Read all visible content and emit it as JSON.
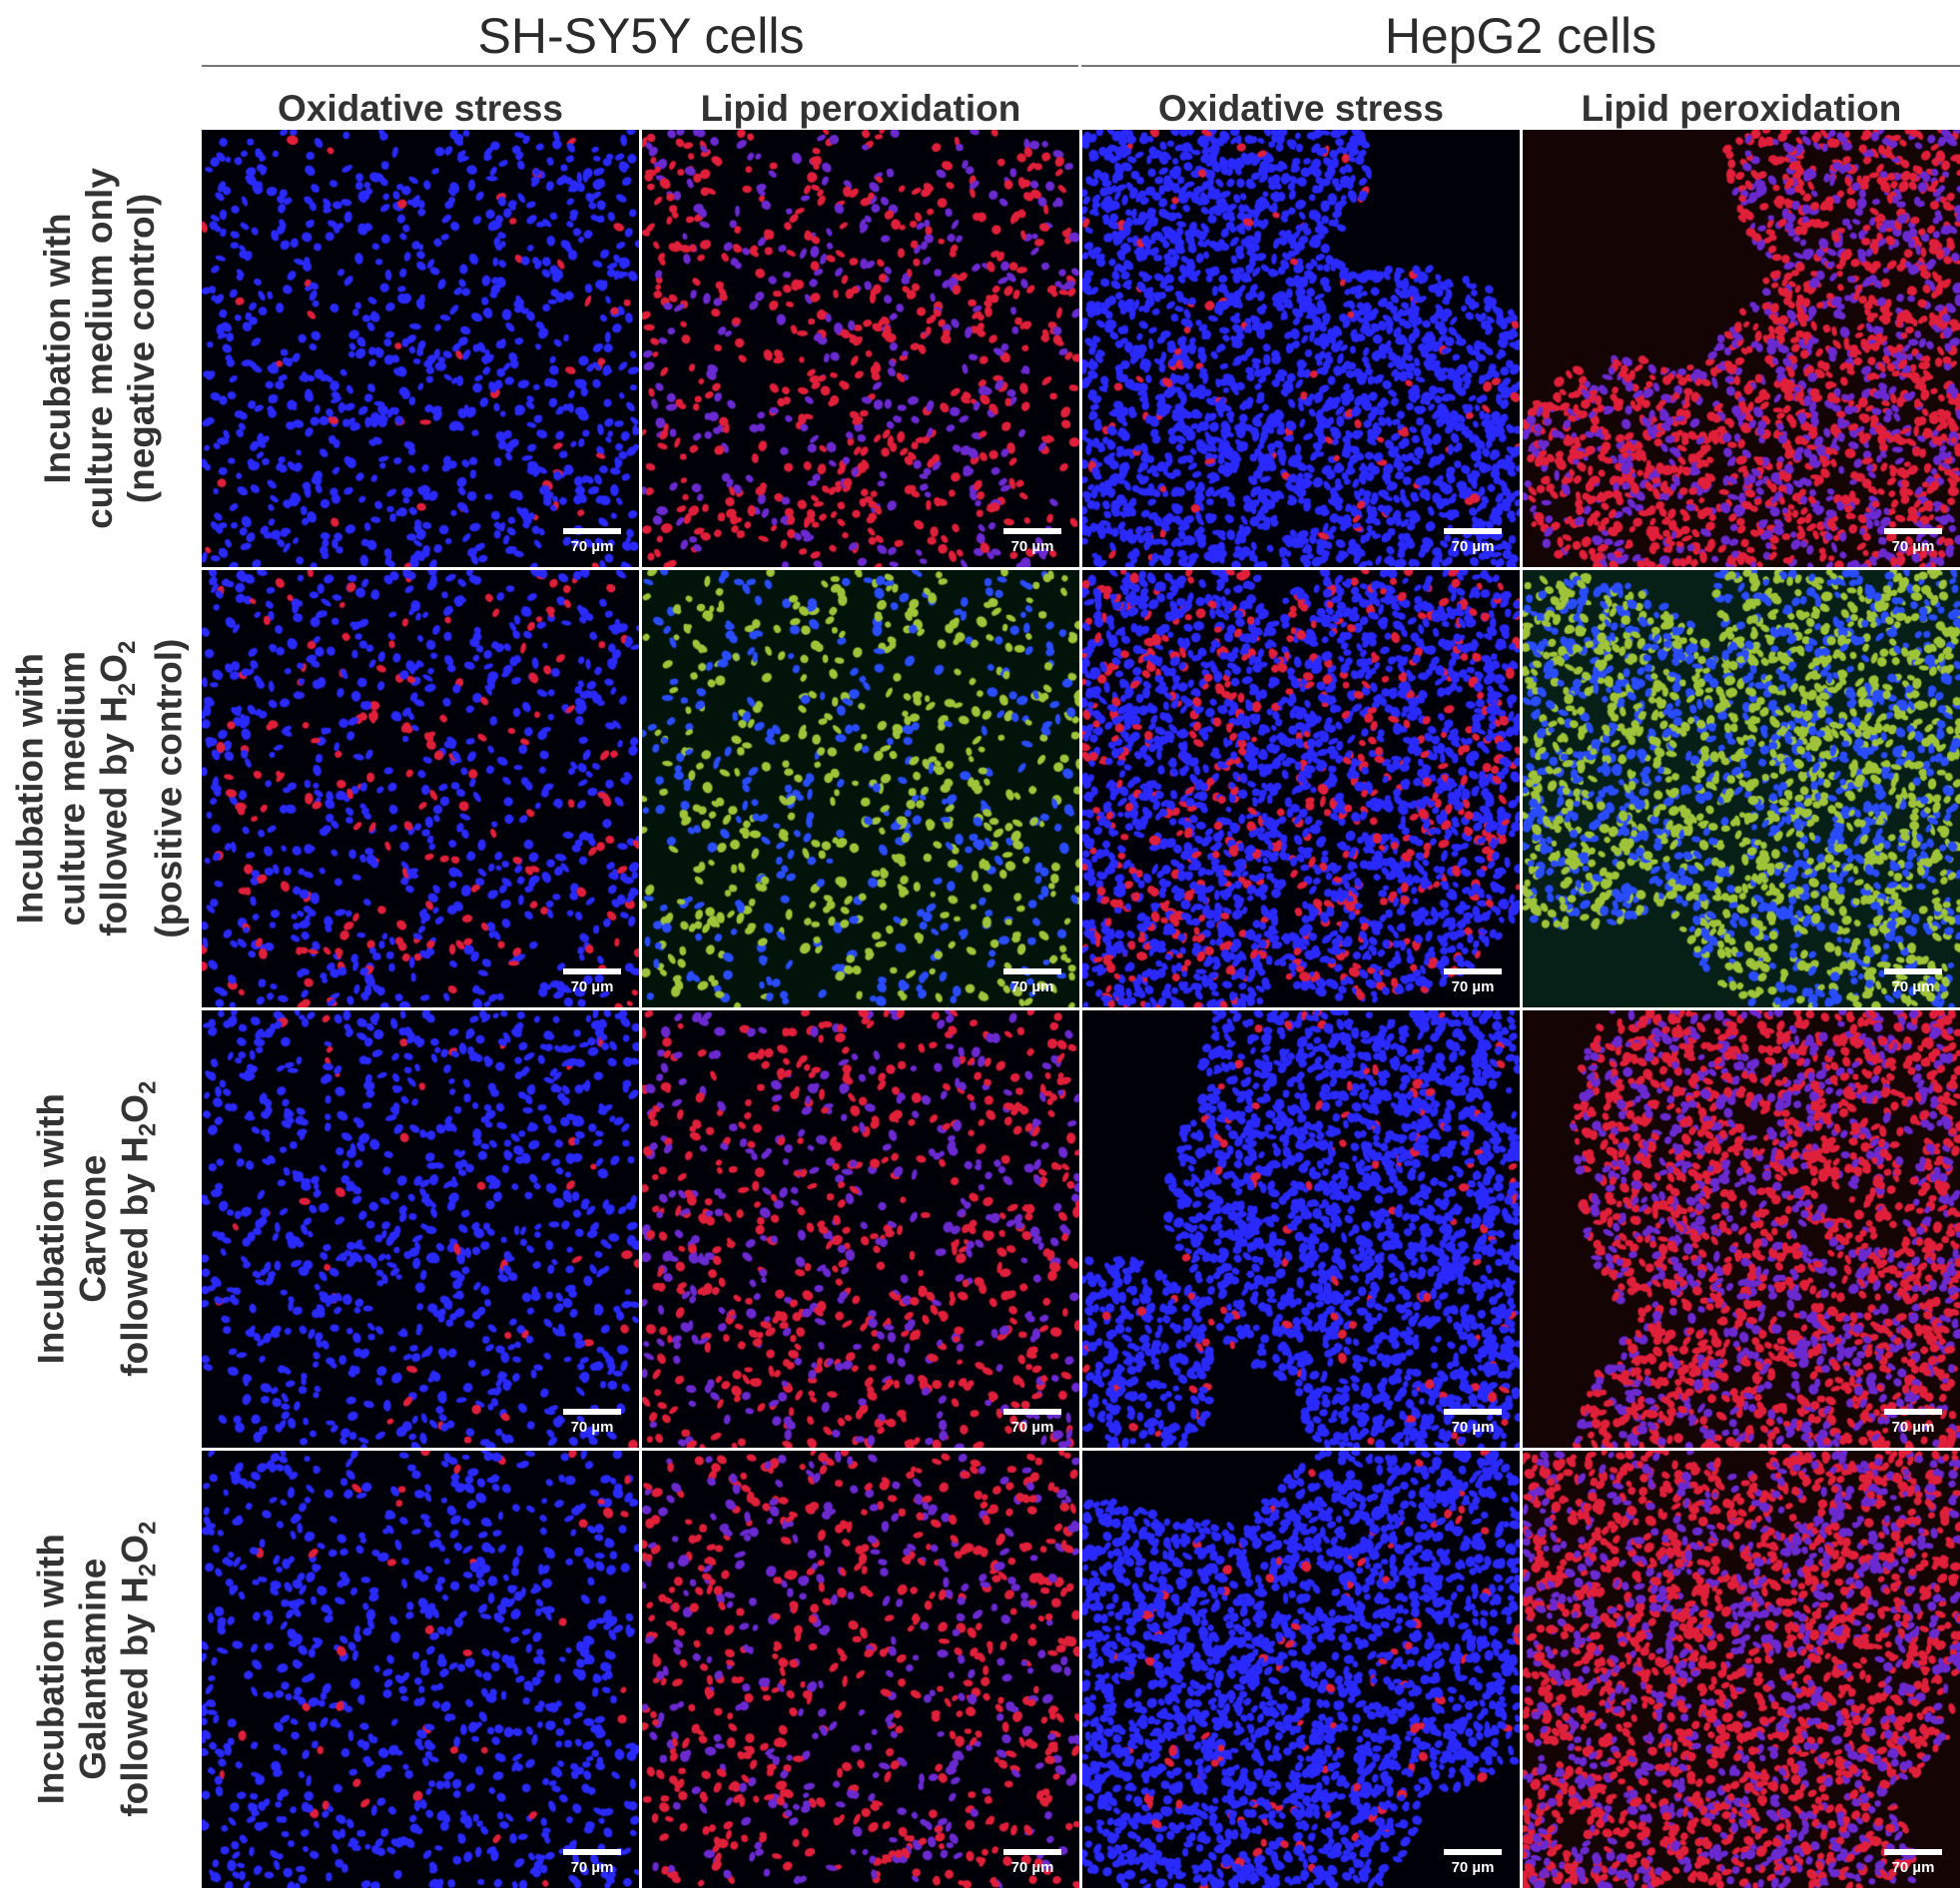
{
  "groups": [
    {
      "title": "SH-SY5Y cells"
    },
    {
      "title": "HepG2 cells"
    }
  ],
  "columns": [
    {
      "title": "Oxidative stress"
    },
    {
      "title": "Lipid peroxidation"
    },
    {
      "title": "Oxidative stress"
    },
    {
      "title": "Lipid peroxidation"
    }
  ],
  "rows": [
    {
      "lines": [
        "Incubation with",
        "culture medium only",
        "(negative control)"
      ]
    },
    {
      "lines": [
        "Incubation with",
        "culture medium",
        "followed by H2O2",
        "(positive control)"
      ]
    },
    {
      "lines": [
        "Incubation with",
        "Carvone",
        "followed by H2O2"
      ]
    },
    {
      "lines": [
        "Incubation with",
        "Galantamine",
        "followed by H2O2"
      ]
    }
  ],
  "scale_bar_label": "70 µm",
  "colors": {
    "nuclei_blue": "#2a2aff",
    "red_stain": "#e0203a",
    "green_stain": "#9fc43a",
    "background": "#000000"
  }
}
